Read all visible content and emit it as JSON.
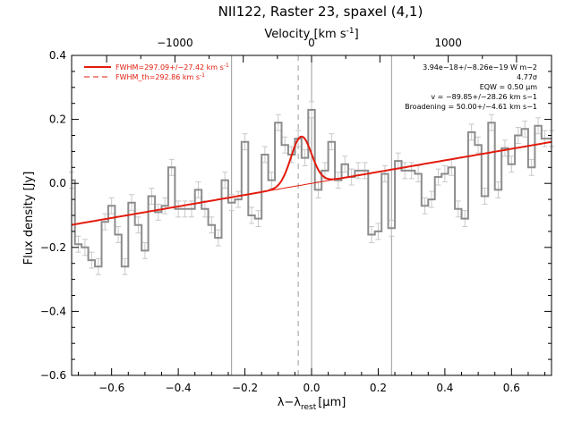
{
  "chart_data": {
    "type": "line",
    "title": "NII122, Raster 23, spaxel (4,1)",
    "xlabel": "λ−λ",
    "xlabel_sub": "rest",
    "xlabel_unit": "[μm]",
    "ylabel": "Flux density [Jy]",
    "top_axis_label": "Velocity [km s",
    "top_axis_label_sup": "-1",
    "top_axis_label_end": "]",
    "xlim": [
      -0.72,
      0.72
    ],
    "ylim": [
      -0.6,
      0.4
    ],
    "x_ticks": [
      "−0.6",
      "−0.4",
      "−0.2",
      "0.0",
      "0.2",
      "0.4",
      "0.6"
    ],
    "x_tick_values": [
      -0.6,
      -0.4,
      -0.2,
      0.0,
      0.2,
      0.4,
      0.6
    ],
    "y_ticks": [
      "−0.6",
      "−0.4",
      "−0.2",
      "0.0",
      "0.2",
      "0.4"
    ],
    "y_tick_values": [
      -0.6,
      -0.4,
      -0.2,
      0.0,
      0.2,
      0.4
    ],
    "top_ticks": [
      "−1000",
      "0",
      "1000"
    ],
    "top_tick_values": [
      -1000,
      0,
      1000
    ],
    "vertical_lines": [
      -0.24,
      0.0,
      0.24
    ],
    "dashed_line": -0.04,
    "legend": [
      {
        "label": "FWHM=297.09+/−27.42 km s",
        "sup": "-1",
        "style": "solid"
      },
      {
        "label": "FWHM_th=292.86 km s",
        "sup": "-1",
        "style": "dashed"
      }
    ],
    "annotations": [
      "3.94e−18+/−8.26e−19 W m−2",
      "4.77σ",
      "EQW = 0.50 μm",
      "v = −89.85+/−28.26 km s−1",
      "Broadening = 50.00+/−4.61 km s−1"
    ],
    "series": [
      {
        "style": "histogram",
        "x": [
          -0.72,
          -0.7,
          -0.68,
          -0.66,
          -0.64,
          -0.62,
          -0.6,
          -0.58,
          -0.56,
          -0.54,
          -0.52,
          -0.5,
          -0.48,
          -0.46,
          -0.44,
          -0.42,
          -0.4,
          -0.38,
          -0.36,
          -0.34,
          -0.32,
          -0.3,
          -0.28,
          -0.26,
          -0.24,
          -0.22,
          -0.2,
          -0.18,
          -0.16,
          -0.14,
          -0.12,
          -0.1,
          -0.08,
          -0.06,
          -0.04,
          -0.02,
          0.0,
          0.02,
          0.04,
          0.06,
          0.08,
          0.1,
          0.12,
          0.14,
          0.16,
          0.18,
          0.2,
          0.22,
          0.24,
          0.26,
          0.28,
          0.3,
          0.32,
          0.34,
          0.36,
          0.38,
          0.4,
          0.42,
          0.44,
          0.46,
          0.48,
          0.5,
          0.52,
          0.54,
          0.56,
          0.58,
          0.6,
          0.62,
          0.64,
          0.66,
          0.68,
          0.7,
          0.72
        ],
        "y": [
          0.01,
          -0.19,
          -0.2,
          -0.24,
          -0.26,
          -0.12,
          -0.07,
          -0.16,
          -0.26,
          -0.06,
          -0.13,
          -0.21,
          -0.04,
          -0.09,
          -0.07,
          0.05,
          -0.08,
          -0.08,
          -0.08,
          -0.02,
          -0.08,
          -0.13,
          -0.17,
          0.01,
          -0.06,
          -0.05,
          0.13,
          -0.1,
          -0.11,
          0.09,
          0.01,
          0.19,
          0.12,
          0.09,
          0.14,
          0.08,
          0.23,
          -0.02,
          0.04,
          0.13,
          0.01,
          0.06,
          0.02,
          0.04,
          0.04,
          -0.16,
          -0.15,
          0.03,
          -0.14,
          0.07,
          0.04,
          0.04,
          0.03,
          -0.07,
          -0.05,
          0.02,
          0.03,
          0.05,
          -0.08,
          -0.11,
          0.16,
          0.12,
          -0.04,
          0.19,
          -0.02,
          0.11,
          0.06,
          0.15,
          0.17,
          0.05,
          0.18,
          0.14,
          0.14
        ],
        "err": 0.025
      },
      {
        "style": "fit",
        "baseline": {
          "slope": 0.18,
          "intercept": 0.0
        },
        "gaussian": {
          "center": -0.031,
          "sigma": 0.031,
          "amplitude": 0.152
        }
      }
    ],
    "colors": {
      "axes": "#000000",
      "data": "#8c8c8c",
      "errorbar": "#c8c8c8",
      "fit": "#e31a0c",
      "grid_lines": "#9a9a9a"
    }
  }
}
